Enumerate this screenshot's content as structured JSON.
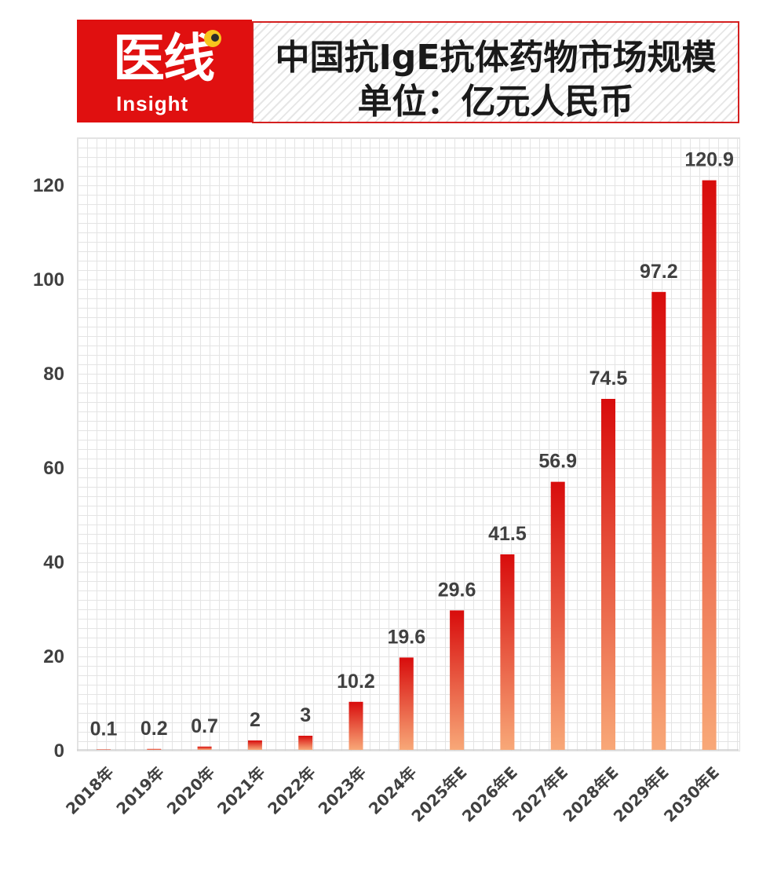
{
  "logo": {
    "name": "医线",
    "sub": "Insight"
  },
  "title": {
    "line1": "中国抗IgE抗体药物市场规模",
    "line2": "单位：亿元人民币"
  },
  "colors": {
    "bar_top": "#d80c0c",
    "bar_bottom": "#f8a878",
    "brand": "#e01010",
    "text": "#404040"
  },
  "chart_data": {
    "type": "bar",
    "title": "中国抗IgE抗体药物市场规模",
    "subtitle": "单位：亿元人民币",
    "categories": [
      "2018年",
      "2019年",
      "2020年",
      "2021年",
      "2022年",
      "2023年",
      "2024年",
      "2025年E",
      "2026年E",
      "2027年E",
      "2028年E",
      "2029年E",
      "2030年E"
    ],
    "values": [
      0.1,
      0.2,
      0.7,
      2,
      3,
      10.2,
      19.6,
      29.6,
      41.5,
      56.9,
      74.5,
      97.2,
      120.9
    ],
    "value_labels": [
      "0.1",
      "0.2",
      "0.7",
      "2",
      "3",
      "10.2",
      "19.6",
      "29.6",
      "41.5",
      "56.9",
      "74.5",
      "97.2",
      "120.9"
    ],
    "ylim": [
      0,
      130
    ],
    "yticks": [
      0,
      20,
      40,
      60,
      80,
      100,
      120
    ],
    "grid": true,
    "legend": "none"
  }
}
